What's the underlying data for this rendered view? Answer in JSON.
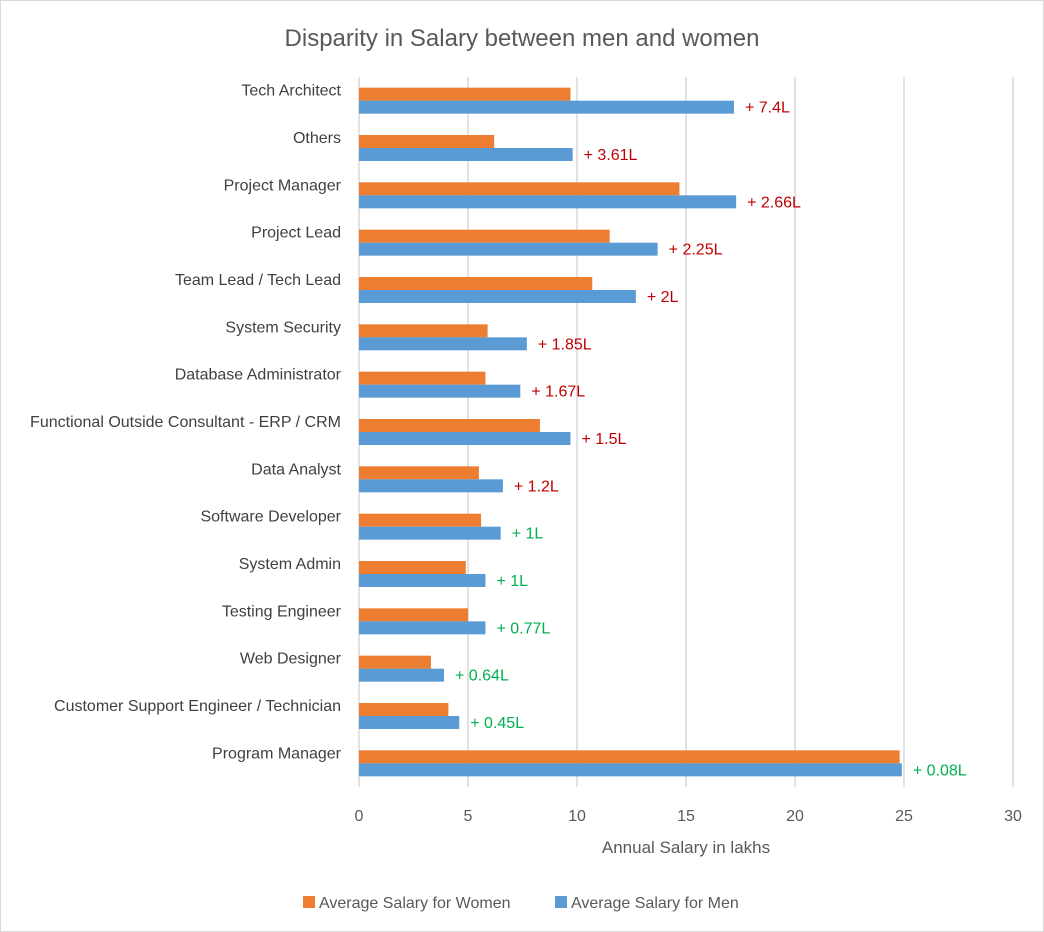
{
  "chart_data": {
    "type": "bar",
    "orientation": "horizontal",
    "title": "Disparity in Salary between men and women",
    "xlabel": "Annual Salary in lakhs",
    "ylabel": "",
    "xlim": [
      0,
      30
    ],
    "xticks": [
      0,
      5,
      10,
      15,
      20,
      25,
      30
    ],
    "grid": true,
    "legend_position": "bottom",
    "categories": [
      "Tech Architect",
      "Others",
      "Project Manager",
      "Project Lead",
      "Team Lead / Tech Lead",
      "System Security",
      "Database Administrator",
      "Functional Outside Consultant - ERP / CRM",
      "Data Analyst",
      "Software Developer",
      "System Admin",
      "Testing Engineer",
      "Web Designer",
      "Customer Support Engineer / Technician",
      "Program Manager"
    ],
    "series": [
      {
        "name": "Average Salary for Women",
        "color": "#ED7D31",
        "values": [
          9.7,
          6.2,
          14.7,
          11.5,
          10.7,
          5.9,
          5.8,
          8.3,
          5.5,
          5.6,
          4.9,
          5.0,
          3.3,
          4.1,
          24.8
        ]
      },
      {
        "name": "Average Salary for Men",
        "color": "#5B9BD5",
        "values": [
          17.2,
          9.8,
          17.3,
          13.7,
          12.7,
          7.7,
          7.4,
          9.7,
          6.6,
          6.5,
          5.8,
          5.8,
          3.9,
          4.6,
          24.9
        ]
      }
    ],
    "annotations": [
      {
        "text": "+ 7.4L",
        "color": "#C00000"
      },
      {
        "text": "+ 3.61L",
        "color": "#C00000"
      },
      {
        "text": "+ 2.66L",
        "color": "#C00000"
      },
      {
        "text": "+ 2.25L",
        "color": "#C00000"
      },
      {
        "text": "+ 2L",
        "color": "#C00000"
      },
      {
        "text": "+ 1.85L",
        "color": "#C00000"
      },
      {
        "text": "+ 1.67L",
        "color": "#C00000"
      },
      {
        "text": "+ 1.5L",
        "color": "#C00000"
      },
      {
        "text": "+ 1.2L",
        "color": "#C00000"
      },
      {
        "text": "+ 1L",
        "color": "#00B050"
      },
      {
        "text": "+ 1L",
        "color": "#00B050"
      },
      {
        "text": "+ 0.77L",
        "color": "#00B050"
      },
      {
        "text": "+ 0.64L",
        "color": "#00B050"
      },
      {
        "text": "+ 0.45L",
        "color": "#00B050"
      },
      {
        "text": "+ 0.08L",
        "color": "#00B050"
      }
    ],
    "gridline_color": "#D9D9D9"
  }
}
